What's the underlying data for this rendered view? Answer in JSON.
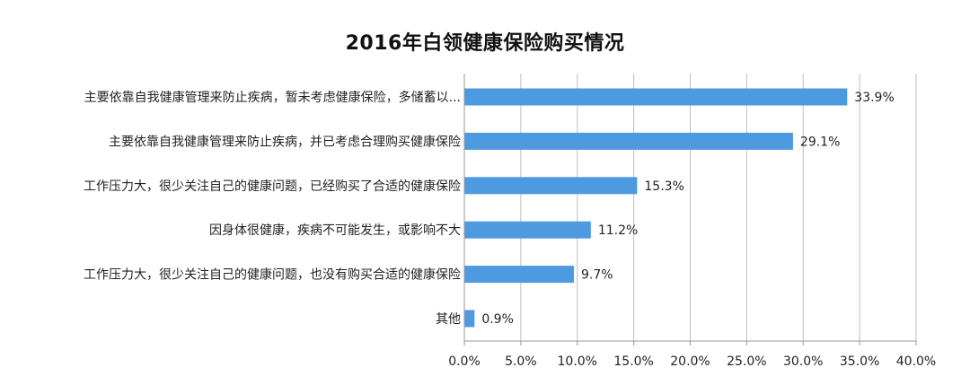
{
  "chart_data": {
    "type": "bar",
    "orientation": "horizontal",
    "title": "2016年白领健康保险购买情况",
    "categories": [
      "主要依靠自我健康管理来防止疾病，暂未考虑健康保险，多储蓄以...",
      "主要依靠自我健康管理来防止疾病，并已考虑合理购买健康保险",
      "工作压力大，很少关注自己的健康问题，已经购买了合适的健康保险",
      "因身体很健康，疾病不可能发生，或影响不大",
      "工作压力大，很少关注自己的健康问题，也没有购买合适的健康保险",
      "其他"
    ],
    "values": [
      33.9,
      29.1,
      15.3,
      11.2,
      9.7,
      0.9
    ],
    "value_labels": [
      "33.9%",
      "29.1%",
      "15.3%",
      "11.2%",
      "9.7%",
      "0.9%"
    ],
    "xlim": [
      0,
      40
    ],
    "x_ticks": [
      0,
      5,
      10,
      15,
      20,
      25,
      30,
      35,
      40
    ],
    "x_tick_labels": [
      "0.0%",
      "5.0%",
      "10.0%",
      "15.0%",
      "20.0%",
      "25.0%",
      "30.0%",
      "35.0%",
      "40.0%"
    ],
    "vertical_grid": true,
    "bar_color": "#4e9ae0",
    "grid_color": "#bfbfbf"
  }
}
